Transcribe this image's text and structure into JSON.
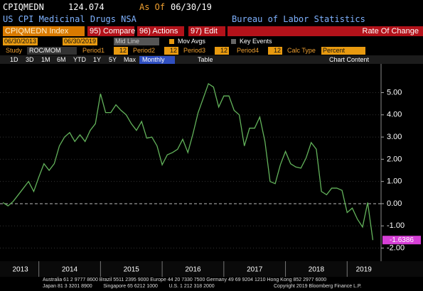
{
  "header": {
    "ticker": "CPIQMEDN",
    "price": "124.074",
    "as_of_label": "As Of",
    "as_of_date": "06/30/19",
    "description": "US CPI Medicinal Drugs NSA",
    "source": "Bureau of Labor Statistics"
  },
  "toolbar": {
    "security": "CPIQMEDN Index",
    "buttons": [
      "95) Compare",
      "96) Actions",
      "97) Edit"
    ],
    "panel_title": "Rate Of Change"
  },
  "settings": {
    "start_date": "06/30/2013",
    "end_date": "06/30/2019",
    "line_style": "Mid Line",
    "mov_avgs": "Mov Avgs",
    "key_events": "Key Events",
    "study_label": "Study",
    "study": "ROC/MOM",
    "periods": [
      {
        "label": "Period1",
        "value": "12"
      },
      {
        "label": "Period2",
        "value": "12"
      },
      {
        "label": "Period3",
        "value": "12"
      },
      {
        "label": "Period4",
        "value": "12"
      }
    ],
    "calc_type_label": "Calc Type",
    "calc_type": "Percent"
  },
  "range_bar": {
    "ranges": [
      "1D",
      "3D",
      "1M",
      "6M",
      "YTD",
      "1Y",
      "5Y",
      "Max"
    ],
    "frequency": "Monthly",
    "table": "Table",
    "chart_content": "Chart Content"
  },
  "chart_data": {
    "type": "line",
    "color": "#63b35b",
    "grid": true,
    "x": [
      2013.417,
      2013.5,
      2013.583,
      2013.667,
      2013.75,
      2013.833,
      2013.917,
      2014.0,
      2014.083,
      2014.167,
      2014.25,
      2014.333,
      2014.417,
      2014.5,
      2014.583,
      2014.667,
      2014.75,
      2014.833,
      2014.917,
      2015.0,
      2015.083,
      2015.167,
      2015.25,
      2015.333,
      2015.417,
      2015.5,
      2015.583,
      2015.667,
      2015.75,
      2015.833,
      2015.917,
      2016.0,
      2016.083,
      2016.167,
      2016.25,
      2016.333,
      2016.417,
      2016.5,
      2016.583,
      2016.667,
      2016.75,
      2016.833,
      2016.917,
      2017.0,
      2017.083,
      2017.167,
      2017.25,
      2017.333,
      2017.417,
      2017.5,
      2017.583,
      2017.667,
      2017.75,
      2017.833,
      2017.917,
      2018.0,
      2018.083,
      2018.167,
      2018.25,
      2018.333,
      2018.417,
      2018.5,
      2018.583,
      2018.667,
      2018.75,
      2018.833,
      2018.917,
      2019.0,
      2019.083,
      2019.167,
      2019.25,
      2019.333,
      2019.417
    ],
    "values": [
      0.05,
      -0.1,
      0.1,
      0.4,
      0.7,
      1.0,
      0.55,
      1.2,
      1.8,
      1.5,
      1.8,
      2.6,
      3.0,
      3.2,
      2.8,
      3.1,
      2.8,
      3.3,
      3.6,
      4.95,
      4.1,
      4.1,
      4.45,
      4.2,
      4.0,
      3.6,
      3.3,
      3.7,
      2.95,
      3.0,
      2.6,
      1.75,
      2.2,
      2.3,
      2.45,
      2.9,
      2.3,
      3.15,
      4.1,
      4.75,
      5.4,
      5.25,
      4.35,
      4.85,
      4.85,
      4.2,
      4.0,
      2.6,
      3.4,
      3.4,
      3.9,
      2.8,
      1.0,
      0.9,
      1.75,
      2.35,
      1.8,
      1.65,
      1.6,
      2.05,
      2.75,
      2.45,
      0.55,
      0.4,
      0.7,
      0.7,
      0.6,
      -0.4,
      -0.2,
      -0.7,
      -1.05,
      0.05,
      -1.6386
    ],
    "xlim": [
      2013.37,
      2019.55
    ],
    "xticks": [
      {
        "value": 2013.7,
        "label": "2013"
      },
      {
        "value": 2014.5,
        "label": "2014"
      },
      {
        "value": 2015.5,
        "label": "2015"
      },
      {
        "value": 2016.5,
        "label": "2016"
      },
      {
        "value": 2017.5,
        "label": "2017"
      },
      {
        "value": 2018.5,
        "label": "2018"
      },
      {
        "value": 2019.27,
        "label": "2019"
      }
    ],
    "year_breaks": [
      2014,
      2015,
      2016,
      2017,
      2018,
      2019
    ],
    "ylim": [
      -2.59,
      6.23
    ],
    "yticks": [
      {
        "value": 5,
        "label": "5.00"
      },
      {
        "value": 4,
        "label": "4.00"
      },
      {
        "value": 3,
        "label": "3.00"
      },
      {
        "value": 2,
        "label": "2.00"
      },
      {
        "value": 1,
        "label": "1.00"
      },
      {
        "value": 0,
        "label": "0.00"
      },
      {
        "value": -1,
        "label": "-1.00"
      },
      {
        "value": -2,
        "label": "-2.00"
      }
    ]
  },
  "footer": {
    "line1": "Australia 61 2 9777 8600 Brazil 5511 2395 9000 Europe 44 20 7330 7500 Germany 49 69 9204 1210 Hong Kong 852 2977 6000",
    "line2": "Japan 81 3 3201 8900        Singapore 65 6212 1000        U.S. 1 212 318 2000",
    "copyright": "Copyright 2019 Bloomberg Finance L.P."
  }
}
